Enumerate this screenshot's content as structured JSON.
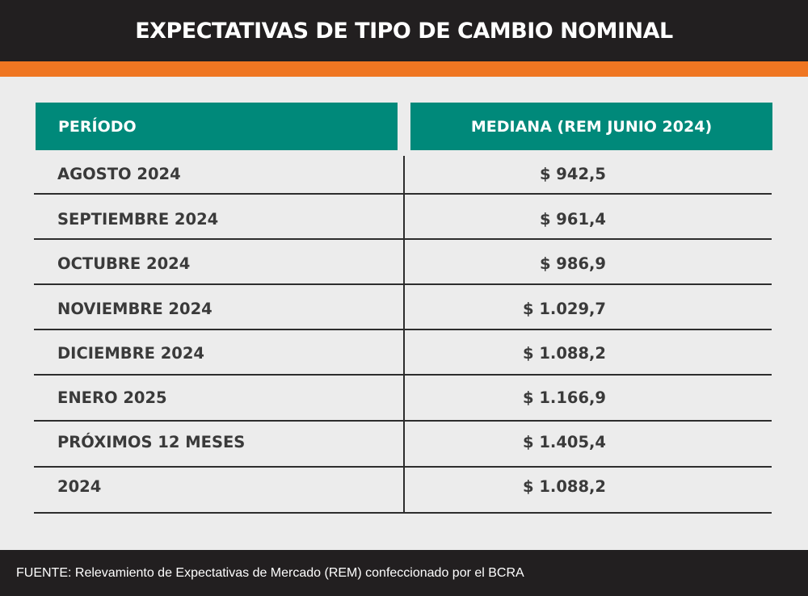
{
  "title": "EXPECTATIVAS DE TIPO DE CAMBIO NOMINAL",
  "table": {
    "headers": {
      "period": "PERÍODO",
      "median": "MEDIANA (REM JUNIO 2024)"
    },
    "rows": [
      {
        "period": "AGOSTO 2024",
        "value": "$ 942,5"
      },
      {
        "period": "SEPTIEMBRE 2024",
        "value": "$ 961,4"
      },
      {
        "period": "OCTUBRE 2024",
        "value": "$ 986,9"
      },
      {
        "period": "NOVIEMBRE 2024",
        "value": "$ 1.029,7"
      },
      {
        "period": "DICIEMBRE 2024",
        "value": "$ 1.088,2"
      },
      {
        "period": "ENERO 2025",
        "value": "$ 1.166,9"
      },
      {
        "period": "PRÓXIMOS 12 MESES",
        "value": "$ 1.405,4"
      },
      {
        "period": "2024",
        "value": "$ 1.088,2"
      }
    ]
  },
  "footer": {
    "source": "FUENTE: Relevamiento de Expectativas de Mercado (REM) confeccionado por el BCRA"
  },
  "colors": {
    "header_bg": "#221f20",
    "accent_orange": "#ef7622",
    "table_header_teal": "#00897a",
    "page_bg": "#ececec"
  }
}
